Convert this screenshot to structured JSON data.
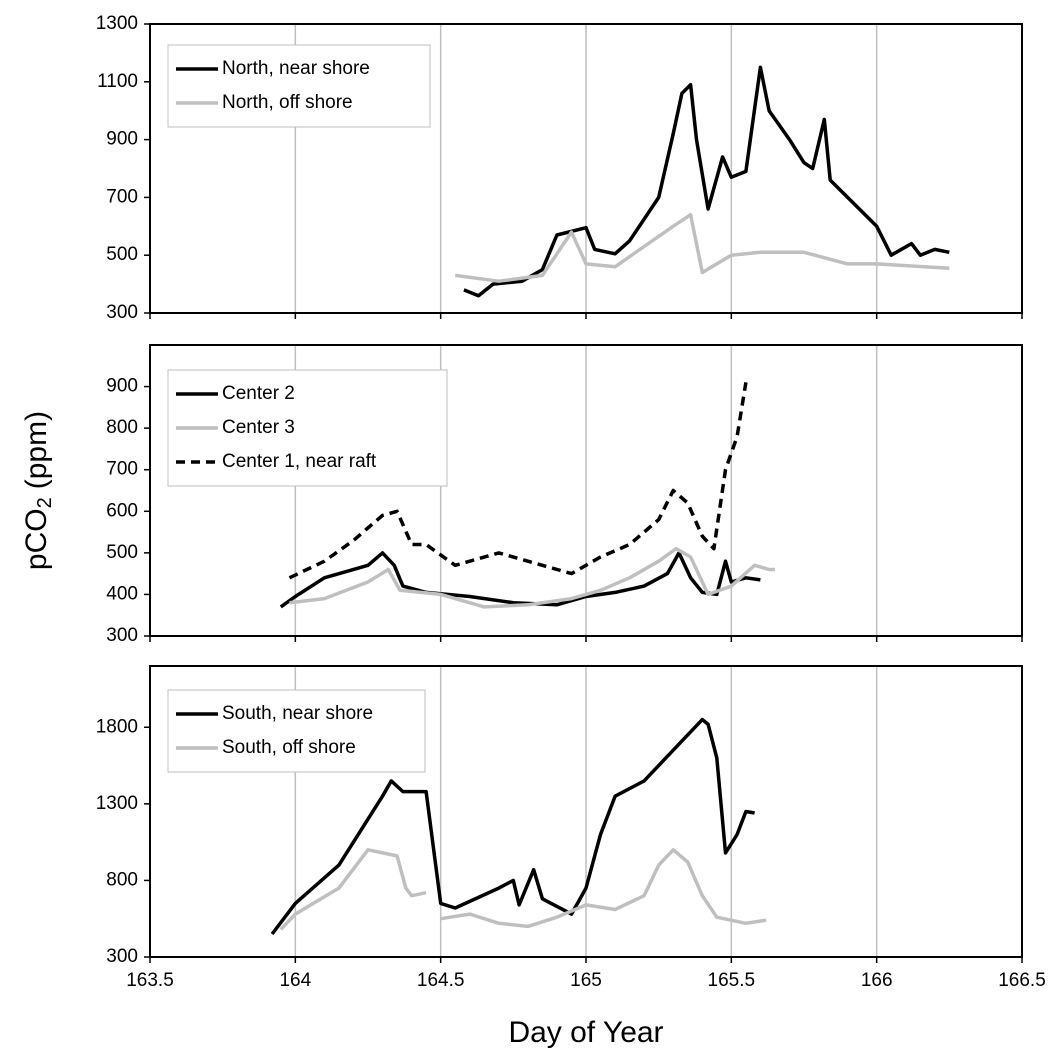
{
  "chart_data": [
    {
      "type": "line",
      "xlim": [
        163.5,
        166.5
      ],
      "xticks": [
        163.5,
        164,
        164.5,
        165,
        165.5,
        166,
        166.5
      ],
      "ylim": [
        300,
        1300
      ],
      "yticks": [
        300,
        500,
        700,
        900,
        1100,
        1300
      ],
      "grid": true,
      "legend": "upper left",
      "series": [
        {
          "name": "North, near shore",
          "color": "#000000",
          "linestyle": "solid",
          "x": [
            164.58,
            164.63,
            164.68,
            164.78,
            164.85,
            164.9,
            165.0,
            165.03,
            165.1,
            165.15,
            165.25,
            165.3,
            165.33,
            165.36,
            165.38,
            165.42,
            165.47,
            165.5,
            165.55,
            165.6,
            165.63,
            165.7,
            165.75,
            165.78,
            165.82,
            165.84,
            165.9,
            166.0,
            166.05,
            166.12,
            166.15,
            166.2,
            166.25
          ],
          "values": [
            380,
            360,
            400,
            410,
            450,
            570,
            595,
            520,
            505,
            550,
            700,
            920,
            1060,
            1090,
            900,
            660,
            840,
            770,
            790,
            1150,
            1000,
            900,
            820,
            800,
            970,
            760,
            700,
            600,
            500,
            540,
            500,
            520,
            510
          ]
        },
        {
          "name": "North, off shore",
          "color": "#bfbfbf",
          "linestyle": "solid",
          "x": [
            164.55,
            164.7,
            164.85,
            164.95,
            165.0,
            165.1,
            165.2,
            165.3,
            165.36,
            165.4,
            165.5,
            165.6,
            165.75,
            165.9,
            166.0,
            166.25
          ],
          "values": [
            430,
            410,
            430,
            580,
            470,
            460,
            530,
            600,
            640,
            440,
            500,
            510,
            510,
            470,
            470,
            455
          ]
        }
      ]
    },
    {
      "type": "line",
      "xlim": [
        163.5,
        166.5
      ],
      "xticks": [
        163.5,
        164,
        164.5,
        165,
        165.5,
        166,
        166.5
      ],
      "ylim": [
        300,
        1000
      ],
      "yticks": [
        300,
        400,
        500,
        600,
        700,
        800,
        900
      ],
      "grid": true,
      "legend": "upper left",
      "ylabel": "pCO",
      "ylabel_subscript": "2",
      "ylabel_unit": "(ppm)",
      "series": [
        {
          "name": "Center 2",
          "color": "#000000",
          "linestyle": "solid",
          "x": [
            163.95,
            164.0,
            164.1,
            164.25,
            164.3,
            164.34,
            164.37,
            164.45,
            164.6,
            164.75,
            164.9,
            165.0,
            165.1,
            165.2,
            165.28,
            165.32,
            165.36,
            165.4,
            165.45,
            165.48,
            165.5,
            165.55,
            165.6
          ],
          "values": [
            370,
            395,
            440,
            470,
            500,
            470,
            420,
            405,
            395,
            380,
            375,
            395,
            405,
            420,
            450,
            500,
            440,
            405,
            400,
            480,
            430,
            440,
            435
          ]
        },
        {
          "name": "Center 3",
          "color": "#bfbfbf",
          "linestyle": "solid",
          "x": [
            163.98,
            164.1,
            164.25,
            164.32,
            164.36,
            164.5,
            164.65,
            164.8,
            164.95,
            165.05,
            165.15,
            165.25,
            165.31,
            165.36,
            165.42,
            165.5,
            165.58,
            165.63,
            165.65
          ],
          "values": [
            380,
            390,
            430,
            460,
            410,
            400,
            370,
            375,
            390,
            410,
            440,
            480,
            510,
            490,
            400,
            420,
            470,
            460,
            460
          ]
        },
        {
          "name": "Center 1, near raft",
          "color": "#000000",
          "linestyle": "dashed",
          "x": [
            163.98,
            164.1,
            164.2,
            164.3,
            164.35,
            164.4,
            164.45,
            164.55,
            164.7,
            164.85,
            164.95,
            165.05,
            165.15,
            165.25,
            165.3,
            165.35,
            165.4,
            165.44,
            165.48,
            165.52,
            165.55
          ],
          "values": [
            440,
            480,
            530,
            590,
            600,
            520,
            520,
            470,
            500,
            470,
            450,
            490,
            520,
            580,
            650,
            620,
            540,
            510,
            700,
            780,
            910
          ]
        }
      ]
    },
    {
      "type": "line",
      "xlim": [
        163.5,
        166.5
      ],
      "xticks": [
        163.5,
        164,
        164.5,
        165,
        165.5,
        166,
        166.5
      ],
      "ylim": [
        300,
        2200
      ],
      "yticks": [
        300,
        800,
        1300,
        1800
      ],
      "grid": true,
      "legend": "upper left",
      "xlabel": "Day of Year",
      "series": [
        {
          "name": "South, near shore",
          "color": "#000000",
          "linestyle": "solid",
          "x": [
            163.92,
            164.0,
            164.15,
            164.3,
            164.33,
            164.37,
            164.45,
            164.5,
            164.55,
            164.7,
            164.75,
            164.77,
            164.82,
            164.85,
            164.95,
            165.0,
            165.05,
            165.1,
            165.2,
            165.3,
            165.35,
            165.4,
            165.42,
            165.45,
            165.48,
            165.52,
            165.55,
            165.58
          ],
          "values": [
            450,
            650,
            900,
            1350,
            1450,
            1380,
            1380,
            650,
            620,
            750,
            800,
            640,
            870,
            680,
            580,
            750,
            1100,
            1350,
            1450,
            1650,
            1750,
            1850,
            1820,
            1600,
            980,
            1100,
            1250,
            1240
          ]
        },
        {
          "name": "South, off shore",
          "color": "#bfbfbf",
          "linestyle": "solid",
          "x": [
            163.95,
            164.0,
            164.15,
            164.25,
            164.35,
            164.38,
            164.4,
            164.45,
            164.47,
            164.5,
            164.6,
            164.7,
            164.8,
            164.9,
            165.0,
            165.1,
            165.2,
            165.25,
            165.3,
            165.35,
            165.4,
            165.45,
            165.55,
            165.62
          ],
          "values": [
            480,
            580,
            750,
            1000,
            960,
            750,
            700,
            720,
            null,
            550,
            580,
            520,
            500,
            560,
            640,
            610,
            700,
            900,
            1000,
            920,
            700,
            560,
            520,
            540
          ]
        }
      ]
    }
  ]
}
